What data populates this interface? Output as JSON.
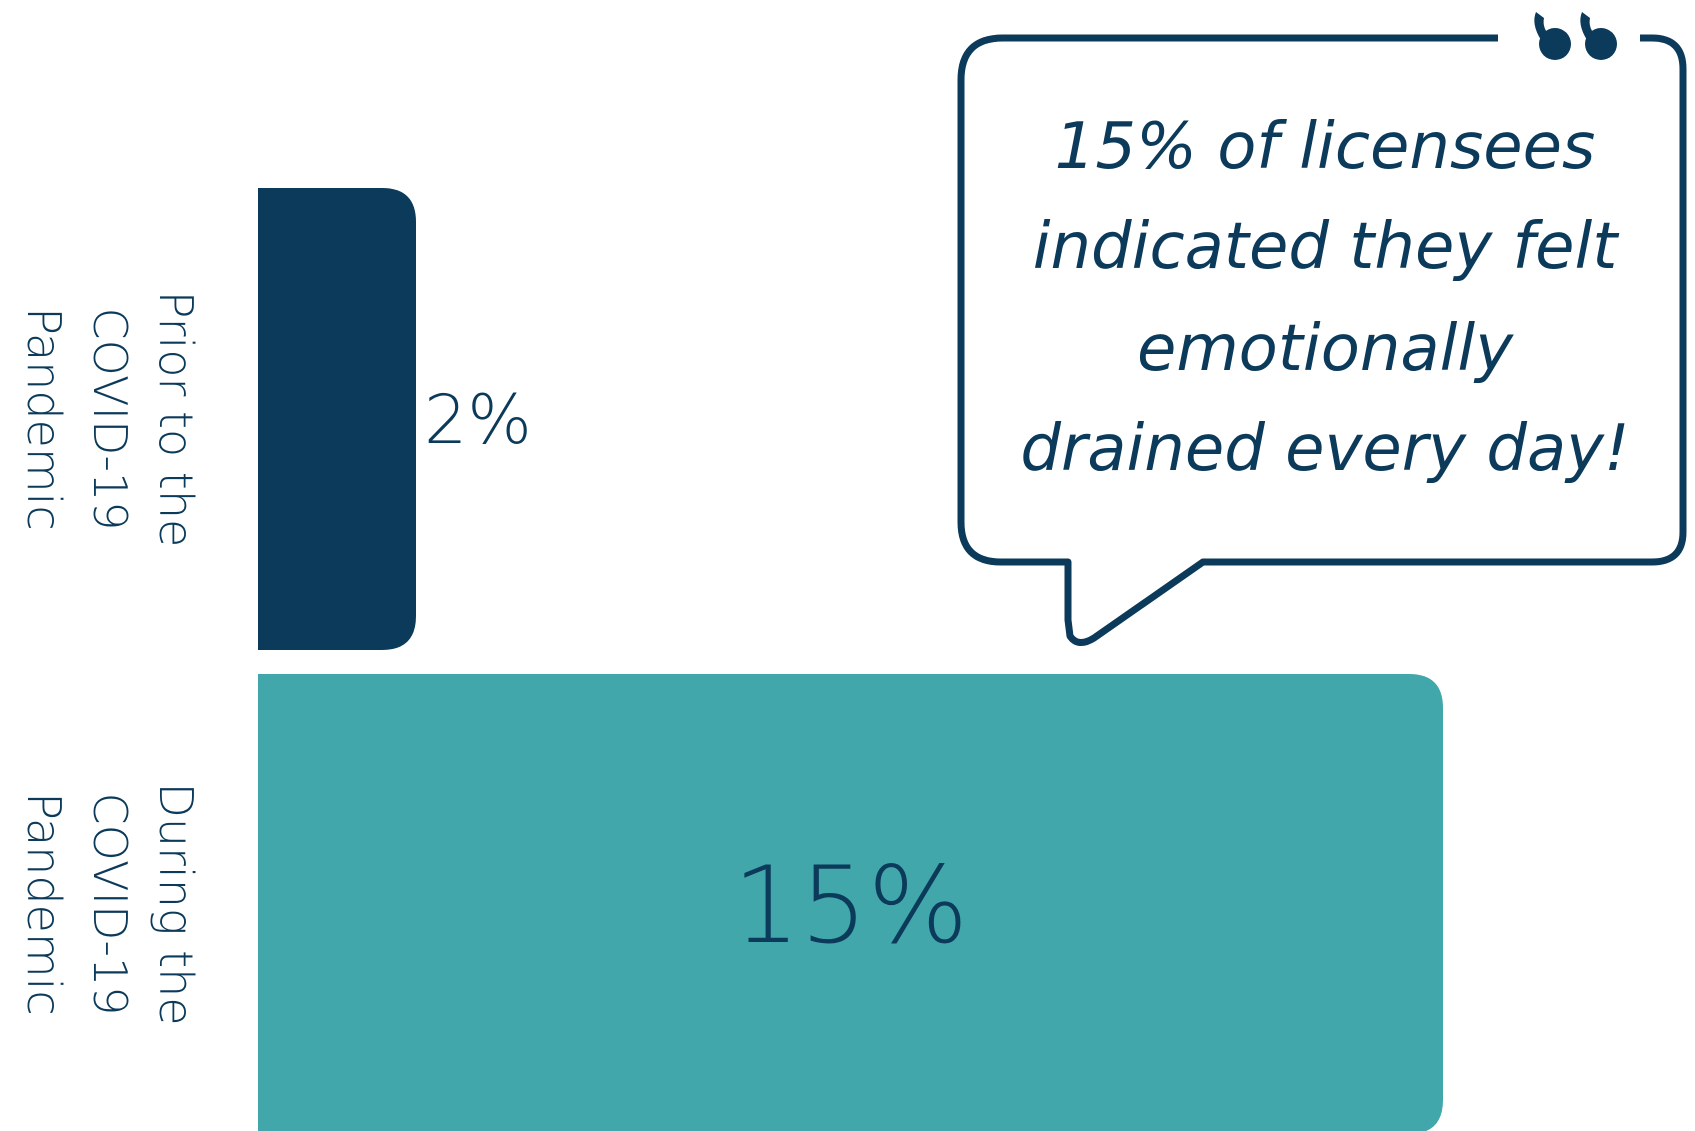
{
  "chart_data": {
    "type": "bar",
    "orientation": "horizontal",
    "categories": [
      [
        "Prior to the",
        "COVID-19",
        "Pandemic"
      ],
      [
        "During the",
        "COVID-19",
        "Pandemic"
      ]
    ],
    "values": [
      2,
      15
    ],
    "value_labels": [
      "2%",
      "15%"
    ],
    "xlim": [
      0,
      15
    ],
    "grid": false,
    "legend": "none"
  },
  "callout": {
    "lines": [
      "15% of licensees",
      "indicated they felt",
      "emotionally",
      "drained every day!"
    ],
    "icon": "quote-marks-icon"
  },
  "colors": {
    "prior_bar": "#0b3a5a",
    "during_bar": "#41a7aa",
    "text": "#0b3a5a",
    "callout_stroke": "#0b3a5a"
  }
}
